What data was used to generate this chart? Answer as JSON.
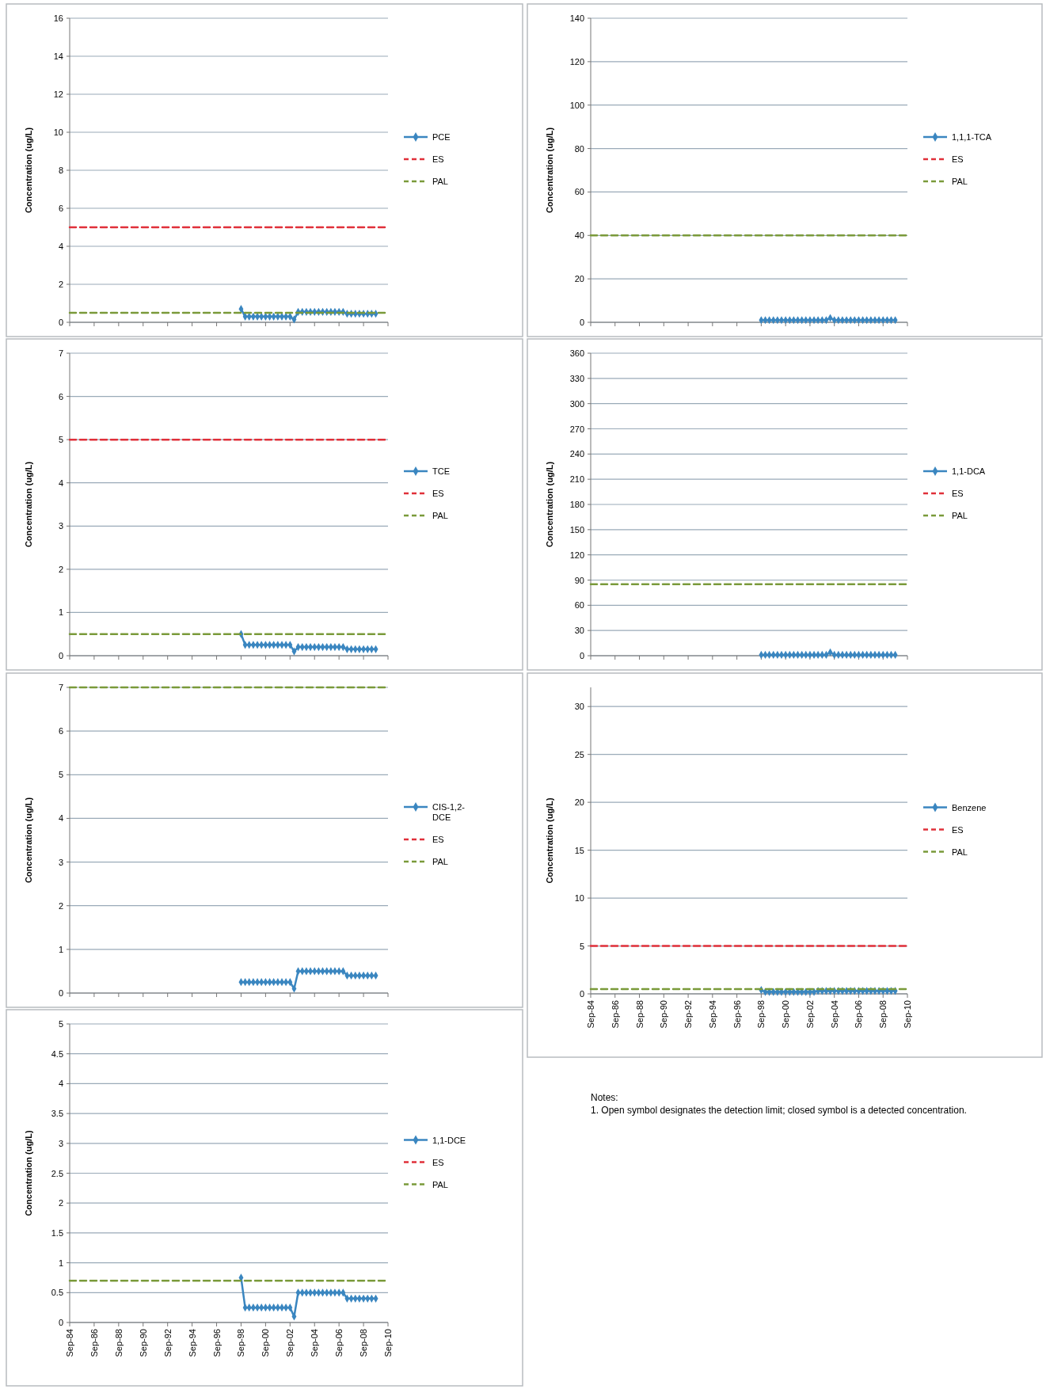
{
  "chart_data": [
    {
      "type": "line",
      "ylabel": "Concentration (ug/L)",
      "x": [
        "1998-09",
        "1999-01",
        "1999-05",
        "1999-09",
        "2000-01",
        "2000-05",
        "2000-09",
        "2001-01",
        "2001-05",
        "2001-09",
        "2002-01",
        "2002-05",
        "2002-09",
        "2003-01",
        "2003-05",
        "2003-09",
        "2004-01",
        "2004-05",
        "2004-09",
        "2005-01",
        "2005-05",
        "2005-09",
        "2006-01",
        "2006-05",
        "2006-09",
        "2007-01",
        "2007-05",
        "2007-09",
        "2008-01",
        "2008-05",
        "2008-09",
        "2009-01",
        "2009-05",
        "2009-09"
      ],
      "xlim": [
        "1984-09",
        "2010-09"
      ],
      "xticks": [
        {
          "value": "1984-09",
          "label": null
        },
        {
          "value": "1986-09",
          "label": null
        },
        {
          "value": "1988-09",
          "label": null
        },
        {
          "value": "1990-09",
          "label": null
        },
        {
          "value": "1992-09",
          "label": null
        },
        {
          "value": "1994-09",
          "label": null
        },
        {
          "value": "1996-09",
          "label": null
        },
        {
          "value": "1998-09",
          "label": null
        },
        {
          "value": "2000-09",
          "label": null
        },
        {
          "value": "2002-09",
          "label": null
        },
        {
          "value": "2004-09",
          "label": null
        },
        {
          "value": "2006-09",
          "label": null
        },
        {
          "value": "2008-09",
          "label": null
        },
        {
          "value": "2010-09",
          "label": null
        }
      ],
      "ylim": [
        0,
        16
      ],
      "yticks": [
        0,
        2,
        4,
        6,
        8,
        10,
        12,
        14,
        16
      ],
      "grid": "y",
      "legend": "right",
      "tick_labels": "y",
      "series": [
        {
          "name": "PCE",
          "color": "#3a86c0",
          "marker": "diamond",
          "values": [
            0.7,
            0.3,
            0.3,
            0.3,
            0.3,
            0.3,
            0.3,
            0.3,
            0.3,
            0.3,
            0.3,
            0.3,
            0.3,
            0.15,
            0.55,
            0.55,
            0.55,
            0.55,
            0.55,
            0.55,
            0.55,
            0.55,
            0.55,
            0.55,
            0.55,
            0.55,
            0.45,
            0.45,
            0.45,
            0.45,
            0.45,
            0.45,
            0.45,
            0.45
          ]
        },
        {
          "name": "ES",
          "color": "#e0303a",
          "line_style": "dashed",
          "x": [
            "1984-09",
            "2010-09"
          ],
          "values": [
            5,
            5
          ]
        },
        {
          "name": "PAL",
          "color": "#7a9a3a",
          "line_style": "dashed",
          "x": [
            "1984-09",
            "2010-09"
          ],
          "values": [
            0.5,
            0.5
          ]
        }
      ]
    },
    {
      "type": "line",
      "ylabel": "Concentration (ug/L)",
      "x": [
        "1998-09",
        "1999-01",
        "1999-05",
        "1999-09",
        "2000-01",
        "2000-05",
        "2000-09",
        "2001-01",
        "2001-05",
        "2001-09",
        "2002-01",
        "2002-05",
        "2002-09",
        "2003-01",
        "2003-05",
        "2003-09",
        "2004-01",
        "2004-05",
        "2004-09",
        "2005-01",
        "2005-05",
        "2005-09",
        "2006-01",
        "2006-05",
        "2006-09",
        "2007-01",
        "2007-05",
        "2007-09",
        "2008-01",
        "2008-05",
        "2008-09",
        "2009-01",
        "2009-05",
        "2009-09"
      ],
      "xlim": [
        "1984-09",
        "2010-09"
      ],
      "xticks": [
        {
          "value": "1984-09",
          "label": null
        },
        {
          "value": "1986-09",
          "label": null
        },
        {
          "value": "1988-09",
          "label": null
        },
        {
          "value": "1990-09",
          "label": null
        },
        {
          "value": "1992-09",
          "label": null
        },
        {
          "value": "1994-09",
          "label": null
        },
        {
          "value": "1996-09",
          "label": null
        },
        {
          "value": "1998-09",
          "label": null
        },
        {
          "value": "2000-09",
          "label": null
        },
        {
          "value": "2002-09",
          "label": null
        },
        {
          "value": "2004-09",
          "label": null
        },
        {
          "value": "2006-09",
          "label": null
        },
        {
          "value": "2008-09",
          "label": null
        },
        {
          "value": "2010-09",
          "label": null
        }
      ],
      "ylim": [
        0,
        140
      ],
      "yticks": [
        0,
        20,
        40,
        60,
        80,
        100,
        120,
        140
      ],
      "grid": "y",
      "legend": "right",
      "tick_labels": "y",
      "series": [
        {
          "name": "1,1,1-TCA",
          "color": "#3a86c0",
          "marker": "diamond",
          "values": [
            1,
            1,
            1,
            1,
            1,
            1,
            1,
            1,
            1,
            1,
            1,
            1,
            1,
            1,
            1,
            1,
            1,
            2,
            1,
            1,
            1,
            1,
            1,
            1,
            1,
            1,
            1,
            1,
            1,
            1,
            1,
            1,
            1,
            1
          ]
        },
        {
          "name": "ES",
          "color": "#e0303a",
          "line_style": "dashed",
          "values": [
            null,
            null,
            null,
            null,
            null,
            null,
            null,
            null,
            null,
            null,
            null,
            null,
            null,
            null,
            null,
            null,
            null,
            null,
            null,
            null,
            null,
            null,
            null,
            null,
            null,
            null,
            null,
            null,
            null,
            null,
            null,
            null,
            null,
            null
          ]
        },
        {
          "name": "PAL",
          "color": "#7a9a3a",
          "line_style": "dashed",
          "x": [
            "1984-09",
            "2010-09"
          ],
          "values": [
            40,
            40
          ]
        }
      ]
    },
    {
      "type": "line",
      "ylabel": "Concentration (ug/L)",
      "x": [
        "1998-09",
        "1999-01",
        "1999-05",
        "1999-09",
        "2000-01",
        "2000-05",
        "2000-09",
        "2001-01",
        "2001-05",
        "2001-09",
        "2002-01",
        "2002-05",
        "2002-09",
        "2003-01",
        "2003-05",
        "2003-09",
        "2004-01",
        "2004-05",
        "2004-09",
        "2005-01",
        "2005-05",
        "2005-09",
        "2006-01",
        "2006-05",
        "2006-09",
        "2007-01",
        "2007-05",
        "2007-09",
        "2008-01",
        "2008-05",
        "2008-09",
        "2009-01",
        "2009-05",
        "2009-09"
      ],
      "xlim": [
        "1984-09",
        "2010-09"
      ],
      "xticks": [
        {
          "value": "1984-09",
          "label": null
        },
        {
          "value": "1986-09",
          "label": null
        },
        {
          "value": "1988-09",
          "label": null
        },
        {
          "value": "1990-09",
          "label": null
        },
        {
          "value": "1992-09",
          "label": null
        },
        {
          "value": "1994-09",
          "label": null
        },
        {
          "value": "1996-09",
          "label": null
        },
        {
          "value": "1998-09",
          "label": null
        },
        {
          "value": "2000-09",
          "label": null
        },
        {
          "value": "2002-09",
          "label": null
        },
        {
          "value": "2004-09",
          "label": null
        },
        {
          "value": "2006-09",
          "label": null
        },
        {
          "value": "2008-09",
          "label": null
        },
        {
          "value": "2010-09",
          "label": null
        }
      ],
      "ylim": [
        0,
        7
      ],
      "yticks": [
        0,
        1,
        2,
        3,
        4,
        5,
        6,
        7
      ],
      "grid": "y",
      "legend": "right",
      "tick_labels": "y",
      "series": [
        {
          "name": "TCE",
          "color": "#3a86c0",
          "marker": "diamond",
          "values": [
            0.5,
            0.25,
            0.25,
            0.25,
            0.25,
            0.25,
            0.25,
            0.25,
            0.25,
            0.25,
            0.25,
            0.25,
            0.25,
            0.1,
            0.2,
            0.2,
            0.2,
            0.2,
            0.2,
            0.2,
            0.2,
            0.2,
            0.2,
            0.2,
            0.2,
            0.2,
            0.15,
            0.15,
            0.15,
            0.15,
            0.15,
            0.15,
            0.15,
            0.15
          ]
        },
        {
          "name": "ES",
          "color": "#e0303a",
          "line_style": "dashed",
          "x": [
            "1984-09",
            "2010-09"
          ],
          "values": [
            5,
            5
          ]
        },
        {
          "name": "PAL",
          "color": "#7a9a3a",
          "line_style": "dashed",
          "x": [
            "1984-09",
            "2010-09"
          ],
          "values": [
            0.5,
            0.5
          ]
        }
      ]
    },
    {
      "type": "line",
      "ylabel": "Concentration (ug/L)",
      "x": [
        "1998-09",
        "1999-01",
        "1999-05",
        "1999-09",
        "2000-01",
        "2000-05",
        "2000-09",
        "2001-01",
        "2001-05",
        "2001-09",
        "2002-01",
        "2002-05",
        "2002-09",
        "2003-01",
        "2003-05",
        "2003-09",
        "2004-01",
        "2004-05",
        "2004-09",
        "2005-01",
        "2005-05",
        "2005-09",
        "2006-01",
        "2006-05",
        "2006-09",
        "2007-01",
        "2007-05",
        "2007-09",
        "2008-01",
        "2008-05",
        "2008-09",
        "2009-01",
        "2009-05",
        "2009-09"
      ],
      "xlim": [
        "1984-09",
        "2010-09"
      ],
      "xticks": [
        {
          "value": "1984-09",
          "label": null
        },
        {
          "value": "1986-09",
          "label": null
        },
        {
          "value": "1988-09",
          "label": null
        },
        {
          "value": "1990-09",
          "label": null
        },
        {
          "value": "1992-09",
          "label": null
        },
        {
          "value": "1994-09",
          "label": null
        },
        {
          "value": "1996-09",
          "label": null
        },
        {
          "value": "1998-09",
          "label": null
        },
        {
          "value": "2000-09",
          "label": null
        },
        {
          "value": "2002-09",
          "label": null
        },
        {
          "value": "2004-09",
          "label": null
        },
        {
          "value": "2006-09",
          "label": null
        },
        {
          "value": "2008-09",
          "label": null
        },
        {
          "value": "2010-09",
          "label": null
        }
      ],
      "ylim": [
        0,
        360
      ],
      "yticks": [
        0,
        30,
        60,
        90,
        120,
        150,
        180,
        210,
        240,
        270,
        300,
        330,
        360
      ],
      "grid": "y",
      "legend": "right",
      "tick_labels": "y",
      "series": [
        {
          "name": "1,1-DCA",
          "color": "#3a86c0",
          "marker": "diamond",
          "values": [
            1,
            1,
            1,
            1,
            1,
            1,
            1,
            1,
            1,
            1,
            1,
            1,
            1,
            1,
            1,
            1,
            1,
            4,
            1,
            1,
            1,
            1,
            1,
            1,
            1,
            1,
            1,
            1,
            1,
            1,
            1,
            1,
            1,
            1
          ]
        },
        {
          "name": "ES",
          "color": "#e0303a",
          "line_style": "dashed",
          "values": [
            null,
            null,
            null,
            null,
            null,
            null,
            null,
            null,
            null,
            null,
            null,
            null,
            null,
            null,
            null,
            null,
            null,
            null,
            null,
            null,
            null,
            null,
            null,
            null,
            null,
            null,
            null,
            null,
            null,
            null,
            null,
            null,
            null,
            null
          ]
        },
        {
          "name": "PAL",
          "color": "#7a9a3a",
          "line_style": "dashed",
          "x": [
            "1984-09",
            "2010-09"
          ],
          "values": [
            85,
            85
          ]
        }
      ]
    },
    {
      "type": "line",
      "ylabel": "Concentration (ug/L)",
      "x": [
        "1998-09",
        "1999-01",
        "1999-05",
        "1999-09",
        "2000-01",
        "2000-05",
        "2000-09",
        "2001-01",
        "2001-05",
        "2001-09",
        "2002-01",
        "2002-05",
        "2002-09",
        "2003-01",
        "2003-05",
        "2003-09",
        "2004-01",
        "2004-05",
        "2004-09",
        "2005-01",
        "2005-05",
        "2005-09",
        "2006-01",
        "2006-05",
        "2006-09",
        "2007-01",
        "2007-05",
        "2007-09",
        "2008-01",
        "2008-05",
        "2008-09",
        "2009-01",
        "2009-05",
        "2009-09"
      ],
      "xlim": [
        "1984-09",
        "2010-09"
      ],
      "xticks": [
        {
          "value": "1984-09",
          "label": null
        },
        {
          "value": "1986-09",
          "label": null
        },
        {
          "value": "1988-09",
          "label": null
        },
        {
          "value": "1990-09",
          "label": null
        },
        {
          "value": "1992-09",
          "label": null
        },
        {
          "value": "1994-09",
          "label": null
        },
        {
          "value": "1996-09",
          "label": null
        },
        {
          "value": "1998-09",
          "label": null
        },
        {
          "value": "2000-09",
          "label": null
        },
        {
          "value": "2002-09",
          "label": null
        },
        {
          "value": "2004-09",
          "label": null
        },
        {
          "value": "2006-09",
          "label": null
        },
        {
          "value": "2008-09",
          "label": null
        },
        {
          "value": "2010-09",
          "label": null
        }
      ],
      "ylim": [
        0,
        7
      ],
      "yticks": [
        0,
        1,
        2,
        3,
        4,
        5,
        6,
        7
      ],
      "grid": "y",
      "legend": "right",
      "tick_labels": "y",
      "series": [
        {
          "name": "CIS-1,2-DCE",
          "color": "#3a86c0",
          "marker": "diamond",
          "values": [
            0.25,
            0.25,
            0.25,
            0.25,
            0.25,
            0.25,
            0.25,
            0.25,
            0.25,
            0.25,
            0.25,
            0.25,
            0.25,
            0.1,
            0.5,
            0.5,
            0.5,
            0.5,
            0.5,
            0.5,
            0.5,
            0.5,
            0.5,
            0.5,
            0.5,
            0.5,
            0.4,
            0.4,
            0.4,
            0.4,
            0.4,
            0.4,
            0.4,
            0.4
          ]
        },
        {
          "name": "ES",
          "color": "#e0303a",
          "line_style": "dashed",
          "values": [
            null,
            null,
            null,
            null,
            null,
            null,
            null,
            null,
            null,
            null,
            null,
            null,
            null,
            null,
            null,
            null,
            null,
            null,
            null,
            null,
            null,
            null,
            null,
            null,
            null,
            null,
            null,
            null,
            null,
            null,
            null,
            null,
            null,
            null
          ]
        },
        {
          "name": "PAL",
          "color": "#7a9a3a",
          "line_style": "dashed",
          "x": [
            "1984-09",
            "2010-09"
          ],
          "values": [
            7,
            7
          ]
        }
      ]
    },
    {
      "type": "line",
      "ylabel": "Concentration (ug/L)",
      "x": [
        "1998-09",
        "1999-01",
        "1999-05",
        "1999-09",
        "2000-01",
        "2000-05",
        "2000-09",
        "2001-01",
        "2001-05",
        "2001-09",
        "2002-01",
        "2002-05",
        "2002-09",
        "2003-01",
        "2003-05",
        "2003-09",
        "2004-01",
        "2004-05",
        "2004-09",
        "2005-01",
        "2005-05",
        "2005-09",
        "2006-01",
        "2006-05",
        "2006-09",
        "2007-01",
        "2007-05",
        "2007-09",
        "2008-01",
        "2008-05",
        "2008-09",
        "2009-01",
        "2009-05",
        "2009-09"
      ],
      "xlim": [
        "1984-09",
        "2010-09"
      ],
      "xticks": [
        {
          "value": "1984-09",
          "label": "Sep-84"
        },
        {
          "value": "1986-09",
          "label": "Sep-86"
        },
        {
          "value": "1988-09",
          "label": "Sep-88"
        },
        {
          "value": "1990-09",
          "label": "Sep-90"
        },
        {
          "value": "1992-09",
          "label": "Sep-92"
        },
        {
          "value": "1994-09",
          "label": "Sep-94"
        },
        {
          "value": "1996-09",
          "label": "Sep-96"
        },
        {
          "value": "1998-09",
          "label": "Sep-98"
        },
        {
          "value": "2000-09",
          "label": "Sep-00"
        },
        {
          "value": "2002-09",
          "label": "Sep-02"
        },
        {
          "value": "2004-09",
          "label": "Sep-04"
        },
        {
          "value": "2006-09",
          "label": "Sep-06"
        },
        {
          "value": "2008-09",
          "label": "Sep-08"
        },
        {
          "value": "2010-09",
          "label": "Sep-10"
        }
      ],
      "ylim": [
        0,
        32
      ],
      "yticks": [
        0,
        5,
        10,
        15,
        20,
        25,
        30
      ],
      "grid": "y",
      "legend": "right",
      "annotations": [
        "Notes:",
        "1.  Open symbol designates the detection limit; closed symbol is a detected concentration."
      ],
      "series": [
        {
          "name": "Benzene",
          "color": "#3a86c0",
          "marker": "diamond",
          "values": [
            0.4,
            0.2,
            0.2,
            0.2,
            0.2,
            0.2,
            0.2,
            0.2,
            0.2,
            0.2,
            0.2,
            0.2,
            0.2,
            0.2,
            0.3,
            0.3,
            0.3,
            0.3,
            0.3,
            0.3,
            0.3,
            0.3,
            0.3,
            0.3,
            0.3,
            0.3,
            0.3,
            0.3,
            0.3,
            0.3,
            0.3,
            0.3,
            0.3,
            0.3
          ]
        },
        {
          "name": "ES",
          "color": "#e0303a",
          "line_style": "dashed",
          "x": [
            "1984-09",
            "2010-09"
          ],
          "values": [
            5,
            5
          ]
        },
        {
          "name": "PAL",
          "color": "#7a9a3a",
          "line_style": "dashed",
          "x": [
            "1984-09",
            "2010-09"
          ],
          "values": [
            0.5,
            0.5
          ]
        }
      ]
    },
    {
      "type": "line",
      "ylabel": "Concentration (ug/L)",
      "x": [
        "1998-09",
        "1999-01",
        "1999-05",
        "1999-09",
        "2000-01",
        "2000-05",
        "2000-09",
        "2001-01",
        "2001-05",
        "2001-09",
        "2002-01",
        "2002-05",
        "2002-09",
        "2003-01",
        "2003-05",
        "2003-09",
        "2004-01",
        "2004-05",
        "2004-09",
        "2005-01",
        "2005-05",
        "2005-09",
        "2006-01",
        "2006-05",
        "2006-09",
        "2007-01",
        "2007-05",
        "2007-09",
        "2008-01",
        "2008-05",
        "2008-09",
        "2009-01",
        "2009-05",
        "2009-09"
      ],
      "xlim": [
        "1984-09",
        "2010-09"
      ],
      "xticks": [
        {
          "value": "1984-09",
          "label": "Sep-84"
        },
        {
          "value": "1986-09",
          "label": "Sep-86"
        },
        {
          "value": "1988-09",
          "label": "Sep-88"
        },
        {
          "value": "1990-09",
          "label": "Sep-90"
        },
        {
          "value": "1992-09",
          "label": "Sep-92"
        },
        {
          "value": "1994-09",
          "label": "Sep-94"
        },
        {
          "value": "1996-09",
          "label": "Sep-96"
        },
        {
          "value": "1998-09",
          "label": "Sep-98"
        },
        {
          "value": "2000-09",
          "label": "Sep-00"
        },
        {
          "value": "2002-09",
          "label": "Sep-02"
        },
        {
          "value": "2004-09",
          "label": "Sep-04"
        },
        {
          "value": "2006-09",
          "label": "Sep-06"
        },
        {
          "value": "2008-09",
          "label": "Sep-08"
        },
        {
          "value": "2010-09",
          "label": "Sep-10"
        }
      ],
      "ylim": [
        0,
        5
      ],
      "yticks": [
        0,
        0.5,
        1,
        1.5,
        2,
        2.5,
        3,
        3.5,
        4,
        4.5,
        5
      ],
      "grid": "y",
      "legend": "right",
      "series": [
        {
          "name": "1,1-DCE",
          "color": "#3a86c0",
          "marker": "diamond",
          "values": [
            0.75,
            0.25,
            0.25,
            0.25,
            0.25,
            0.25,
            0.25,
            0.25,
            0.25,
            0.25,
            0.25,
            0.25,
            0.25,
            0.1,
            0.5,
            0.5,
            0.5,
            0.5,
            0.5,
            0.5,
            0.5,
            0.5,
            0.5,
            0.5,
            0.5,
            0.5,
            0.4,
            0.4,
            0.4,
            0.4,
            0.4,
            0.4,
            0.4,
            0.4
          ]
        },
        {
          "name": "ES",
          "color": "#e0303a",
          "line_style": "dashed",
          "values": [
            null,
            null,
            null,
            null,
            null,
            null,
            null,
            null,
            null,
            null,
            null,
            null,
            null,
            null,
            null,
            null,
            null,
            null,
            null,
            null,
            null,
            null,
            null,
            null,
            null,
            null,
            null,
            null,
            null,
            null,
            null,
            null,
            null,
            null
          ]
        },
        {
          "name": "PAL",
          "color": "#7a9a3a",
          "line_style": "dashed",
          "x": [
            "1984-09",
            "2010-09"
          ],
          "values": [
            0.7,
            0.7
          ]
        }
      ]
    }
  ]
}
